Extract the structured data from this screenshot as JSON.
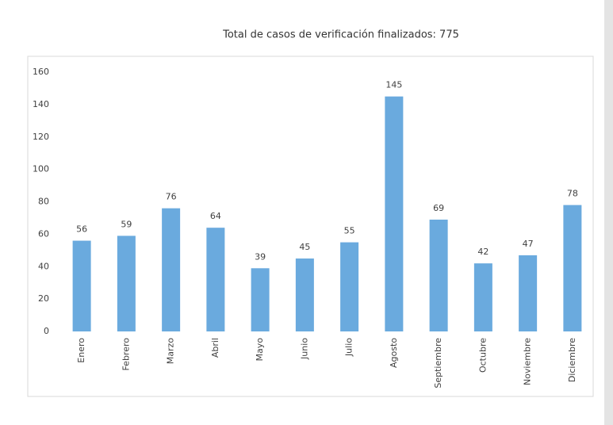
{
  "chart_data": {
    "type": "bar",
    "title": "Total de casos de verificación finalizados: 775",
    "categories": [
      "Enero",
      "Febrero",
      "Marzo",
      "Abril",
      "Mayo",
      "Junio",
      "Julio",
      "Agosto",
      "Septiembre",
      "Octubre",
      "Noviembre",
      "Diciembre"
    ],
    "values": [
      56,
      59,
      76,
      64,
      39,
      45,
      55,
      145,
      69,
      42,
      47,
      78
    ],
    "color": "#6aaade",
    "ylim": [
      0,
      160
    ],
    "yticks": [
      0,
      20,
      40,
      60,
      80,
      100,
      120,
      140,
      160
    ],
    "grid": false
  }
}
